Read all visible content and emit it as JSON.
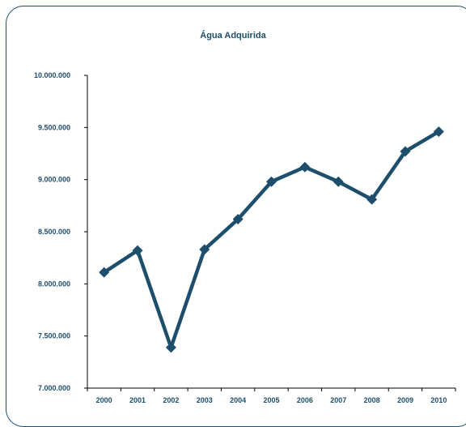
{
  "chart_data": {
    "type": "line",
    "title": "Água Adquirida",
    "xlabel": "",
    "ylabel": "",
    "categories": [
      "2000",
      "2001",
      "2002",
      "2003",
      "2004",
      "2005",
      "2006",
      "2007",
      "2008",
      "2009",
      "2010"
    ],
    "series": [
      {
        "values": [
          8110000,
          8320000,
          7390000,
          8330000,
          8620000,
          8980000,
          9120000,
          8980000,
          8810000,
          9270000,
          9460000
        ]
      }
    ],
    "ylim": [
      7000000,
      10000000
    ],
    "yticks": [
      7000000,
      7500000,
      8000000,
      8500000,
      9000000,
      9500000,
      10000000
    ],
    "ytick_labels": [
      "7.000.000",
      "7.500.000",
      "8.000.000",
      "8.500.000",
      "9.000.000",
      "9.500.000",
      "10.000.000"
    ],
    "grid": false,
    "legend": "none",
    "colors": {
      "line": "#1d4e6b",
      "text": "#1d4e6b",
      "frame": "#1d4e6b"
    }
  }
}
